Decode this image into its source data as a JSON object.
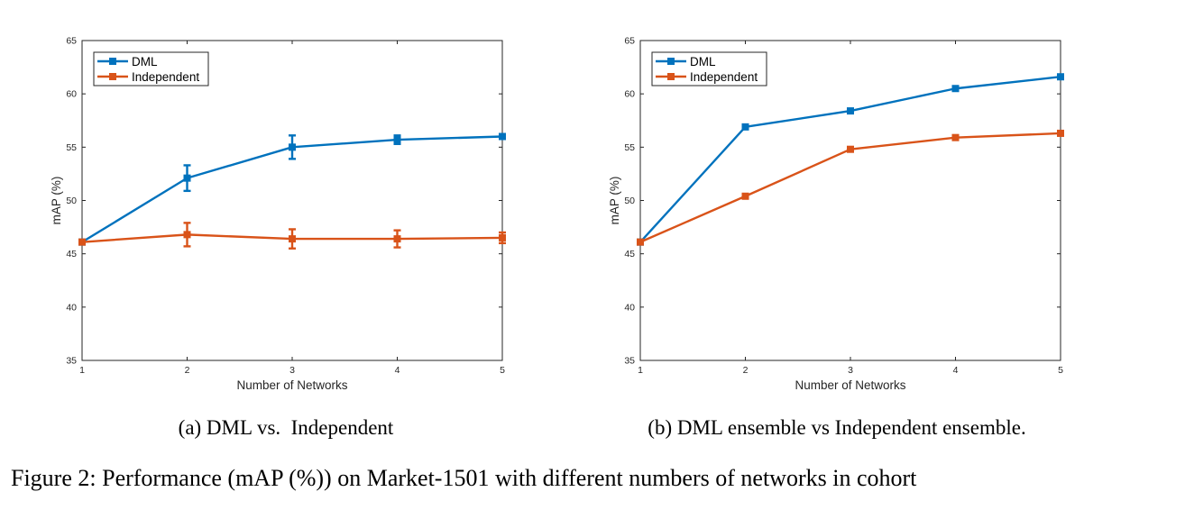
{
  "figure_caption": "Figure 2: Performance (mAP (%)) on Market-1501 with different numbers of networks in cohort",
  "colors": {
    "dml": "#0072BD",
    "independent": "#D95319",
    "axis": "#262626"
  },
  "chart_data": [
    {
      "type": "line",
      "caption": "(a) DML vs.  Independent",
      "xlabel": "Number of Networks",
      "ylabel": "mAP (%)",
      "xlim": [
        1,
        5
      ],
      "ylim": [
        35,
        65
      ],
      "xticks": [
        "1",
        "2",
        "3",
        "4",
        "5"
      ],
      "yticks": [
        "35",
        "40",
        "45",
        "50",
        "55",
        "60",
        "65"
      ],
      "legend_position": "top-left",
      "x": [
        1,
        2,
        3,
        4,
        5
      ],
      "series": [
        {
          "name": "DML",
          "values": [
            46.1,
            52.1,
            55.0,
            55.7,
            56.0
          ],
          "errors": [
            0,
            1.2,
            1.1,
            0.4,
            0
          ]
        },
        {
          "name": "Independent",
          "values": [
            46.1,
            46.8,
            46.4,
            46.4,
            46.5
          ],
          "errors": [
            0,
            1.1,
            0.9,
            0.8,
            0.5
          ]
        }
      ]
    },
    {
      "type": "line",
      "caption": "(b) DML ensemble vs Independent ensemble.",
      "xlabel": "Number of Networks",
      "ylabel": "mAP (%)",
      "xlim": [
        1,
        5
      ],
      "ylim": [
        35,
        65
      ],
      "xticks": [
        "1",
        "2",
        "3",
        "4",
        "5"
      ],
      "yticks": [
        "35",
        "40",
        "45",
        "50",
        "55",
        "60",
        "65"
      ],
      "legend_position": "top-left",
      "x": [
        1,
        2,
        3,
        4,
        5
      ],
      "series": [
        {
          "name": "DML",
          "values": [
            46.1,
            56.9,
            58.4,
            60.5,
            61.6
          ]
        },
        {
          "name": "Independent",
          "values": [
            46.1,
            50.4,
            54.8,
            55.9,
            56.3
          ]
        }
      ]
    }
  ]
}
